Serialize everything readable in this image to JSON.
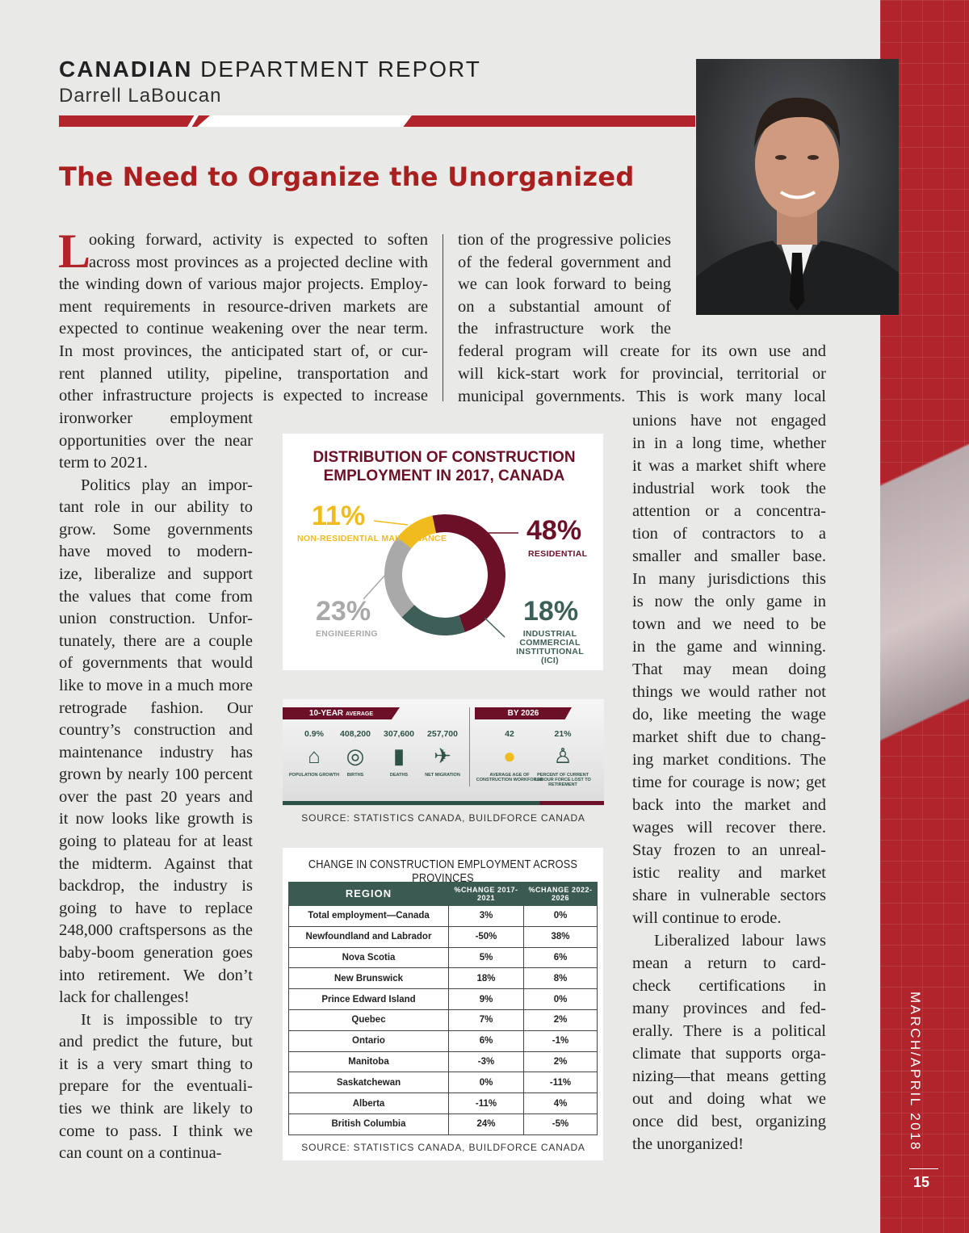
{
  "header": {
    "section_bold": "CANADIAN",
    "section_rest": " DEPARTMENT REPORT",
    "author": "Darrell LaBoucan"
  },
  "article": {
    "title": "The Need to Organize the Unorganized",
    "drop_cap": "L",
    "block_a": [
      "ooking forward, activity is expected to soften",
      "across most provinces as a projected decline with",
      "the winding down of various major projects. Employ-",
      "ment requirements in resource-driven markets are",
      "expected to continue weakening over the near term.",
      "In most provinces, the anticipated start of, or cur-",
      "rent planned utility, pipeline, transportation and",
      "other infrastructure projects is expected to increase"
    ],
    "block_b": [
      "ironworker employment",
      "opportunities over the near",
      "term to 2021.",
      "Politics play an impor-",
      "tant role in our ability to",
      "grow. Some governments",
      "have moved to modern-",
      "ize, liberalize and support",
      "the values that come from",
      "union construction. Unfor-",
      "tunately, there are a couple",
      "of governments that would",
      "like to move in a much more",
      "retrograde fashion. Our",
      "country’s construction and",
      "maintenance industry has",
      "grown by nearly 100 percent",
      "over the past 20 years and",
      "it now looks like growth is",
      "going to plateau for at least",
      "the midterm. Against that",
      "backdrop, the industry is",
      "going to have to replace",
      "248,000 craftspersons as the",
      "baby-boom generation goes",
      "into retirement. We don’t",
      "lack for challenges!",
      "It is impossible to try",
      "and predict the future, but",
      "it is a very smart thing to",
      "prepare for the eventuali-",
      "ties we think are likely to",
      "come to pass. I think we",
      "can count on a continua-"
    ],
    "block_c": [
      "tion of the progressive policies",
      "of the federal government and",
      "we can look forward to being",
      "on a substantial amount of",
      "the infrastructure work the"
    ],
    "block_d": [
      "federal program will create for its own use and",
      "will kick-start work for provincial, territorial or",
      "municipal governments. This is work many local"
    ],
    "block_e": [
      "unions have not engaged",
      "in in a long time, whether",
      "it was a market shift where",
      "industrial work took the",
      "attention or a concentra-",
      "tion of contractors to a",
      "smaller and smaller base.",
      "In many jurisdictions this",
      "is now the only game in",
      "town and we need to be",
      "in the game and winning.",
      "That may mean doing",
      "things we would rather not",
      "do, like meeting the wage",
      "market shift due to chang-",
      "ing market conditions. The",
      "time for courage is now; get",
      "back into the market and",
      "wages will recover there.",
      "Stay frozen to an unreal-",
      "istic reality and market",
      "share in vulnerable sectors",
      "will continue to erode.",
      "Liberalized labour laws",
      "mean a return to card-",
      "check certifications in",
      "many provinces and fed-",
      "erally. There is a political",
      "climate that supports orga-",
      "nizing—that means getting",
      "out and doing what we",
      "once did best, organizing",
      "the unorganized!"
    ]
  },
  "chart_data": [
    {
      "type": "pie",
      "title": "DISTRIBUTION OF CONSTRUCTION EMPLOYMENT IN 2017, CANADA",
      "categories": [
        "RESIDENTIAL",
        "INDUSTRIAL COMMERCIAL INSTITUTIONAL (ICI)",
        "ENGINEERING",
        "NON-RESIDENTIAL MAINTENANCE"
      ],
      "values": [
        48,
        18,
        23,
        11
      ],
      "labels": [
        "48%",
        "18%",
        "23%",
        "11%"
      ],
      "colors": [
        "#6b1026",
        "#3e5f57",
        "#a9a9a9",
        "#f0bb1c"
      ]
    }
  ],
  "infographic": {
    "ten_year_label": "10-YEAR",
    "ten_year_sub": "AVERAGE",
    "by_label": "BY 2026",
    "stats": [
      {
        "value": "0.9%",
        "label": "POPULATION GROWTH",
        "icon": "house-family-icon"
      },
      {
        "value": "408,200",
        "label": "BIRTHS",
        "icon": "baby-icon"
      },
      {
        "value": "307,600",
        "label": "DEATHS",
        "icon": "tombstone-icon"
      },
      {
        "value": "257,700",
        "label": "NET MIGRATION",
        "icon": "airplane-icon"
      },
      {
        "value": "42",
        "label": "AVERAGE AGE OF CONSTRUCTION WORKFORCE",
        "icon": "hardhat-worker-icon"
      },
      {
        "value": "21%",
        "label": "PERCENT OF CURRENT LABOUR FORCE LOST TO RETIREMENT",
        "icon": "elderly-person-icon"
      }
    ],
    "source": "SOURCE: STATISTICS CANADA, BUILDFORCE CANADA"
  },
  "table": {
    "title": "CHANGE IN CONSTRUCTION EMPLOYMENT ACROSS PROVINCES",
    "headers": [
      "REGION",
      "%CHANGE 2017-2021",
      "%CHANGE 2022-2026"
    ],
    "rows": [
      [
        "Total employment—Canada",
        "3%",
        "0%"
      ],
      [
        "Newfoundland and Labrador",
        "-50%",
        "38%"
      ],
      [
        "Nova Scotia",
        "5%",
        "6%"
      ],
      [
        "New Brunswick",
        "18%",
        "8%"
      ],
      [
        "Prince Edward Island",
        "9%",
        "0%"
      ],
      [
        "Quebec",
        "7%",
        "2%"
      ],
      [
        "Ontario",
        "6%",
        "-1%"
      ],
      [
        "Manitoba",
        "-3%",
        "2%"
      ],
      [
        "Saskatchewan",
        "0%",
        "-11%"
      ],
      [
        "Alberta",
        "-11%",
        "4%"
      ],
      [
        "British Columbia",
        "24%",
        "-5%"
      ]
    ],
    "source": "SOURCE: STATISTICS CANADA, BUILDFORCE CANADA"
  },
  "sidebar": {
    "issue": "MARCH/APRIL 2018",
    "page": "15"
  }
}
